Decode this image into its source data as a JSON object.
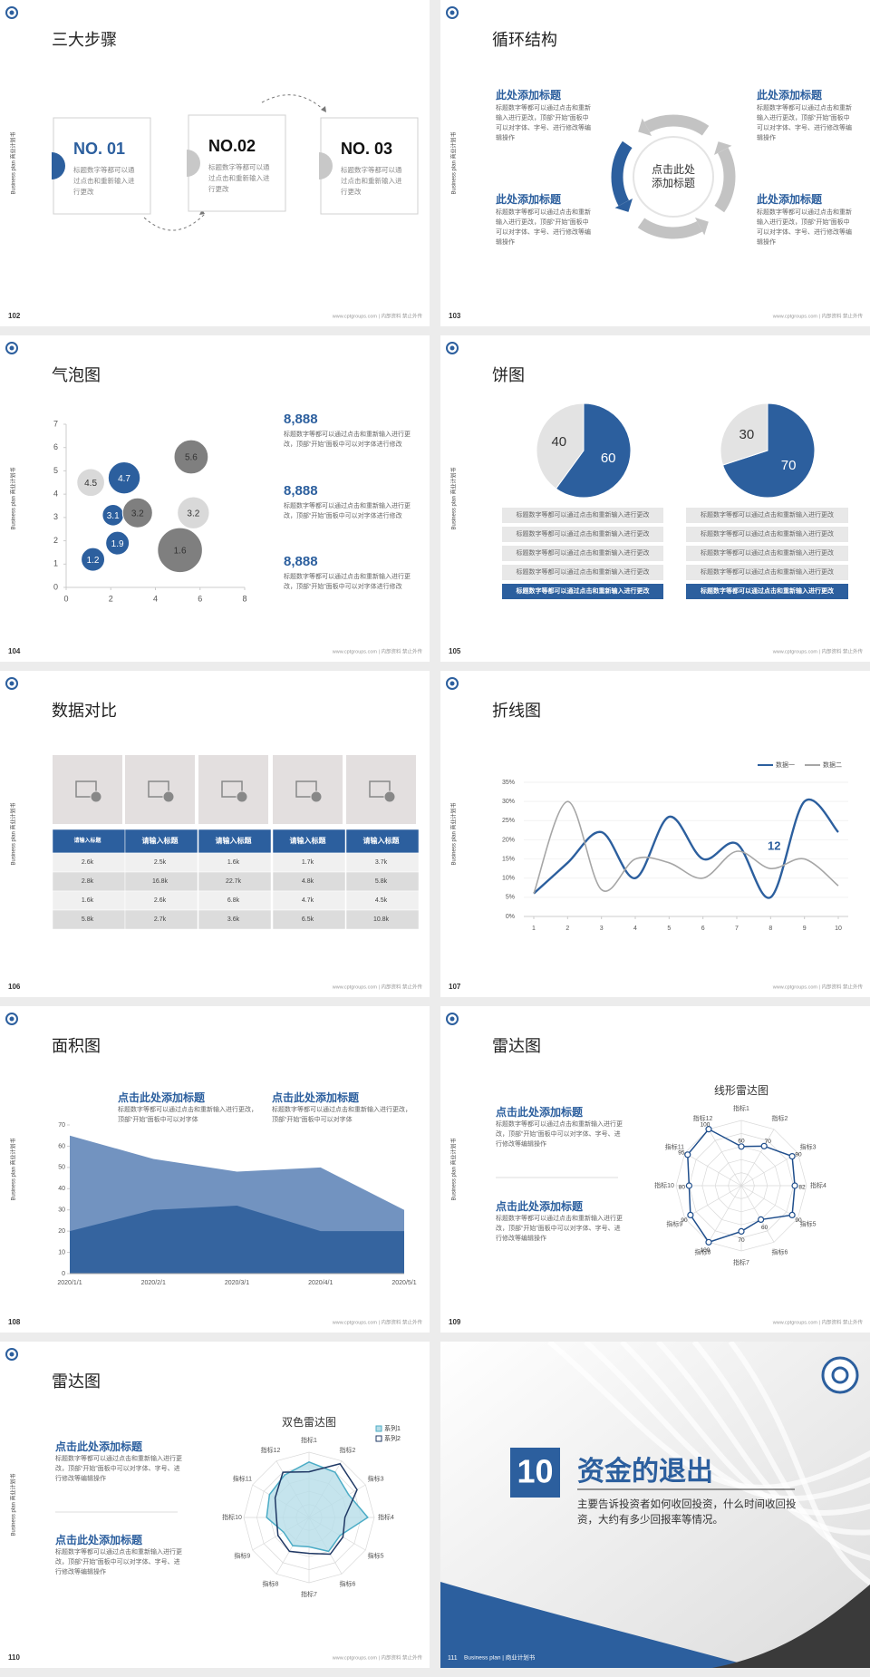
{
  "common": {
    "side_text": "Business plan 商业计划书",
    "footer": "www.cptgroups.com | 内部资料 禁止外传"
  },
  "slides": [
    {
      "page": 102,
      "title": "三大步骤",
      "steps": [
        {
          "label": "NO. 01",
          "text": "标题数字等都可以通过点击和重新输入进行更改"
        },
        {
          "label": "NO.02",
          "text": "标题数字等都可以通过点击和重新输入进行更改"
        },
        {
          "label": "NO. 03",
          "text": "标题数字等都可以通过点击和重新输入进行更改"
        }
      ]
    },
    {
      "page": 103,
      "title": "循环结构",
      "center": [
        "点击此处",
        "添加标题"
      ],
      "blocks": [
        {
          "heading": "此处添加标题",
          "text": "标题数字等都可以通过点击和重新输入进行更改，顶部“开始”面板中可以对字体、字号、进行修改等编辑操作"
        },
        {
          "heading": "此处添加标题",
          "text": "标题数字等都可以通过点击和重新输入进行更改，顶部“开始”面板中可以对字体、字号、进行修改等编辑操作"
        },
        {
          "heading": "此处添加标题",
          "text": "标题数字等都可以通过点击和重新输入进行更改，顶部“开始”面板中可以对字体、字号、进行修改等编辑操作"
        },
        {
          "heading": "此处添加标题",
          "text": "标题数字等都可以通过点击和重新输入进行更改，顶部“开始”面板中可以对字体、字号、进行修改等编辑操作"
        }
      ]
    },
    {
      "page": 104,
      "title": "气泡图",
      "notes": [
        {
          "heading": "8,888",
          "text": "标题数字等都可以通过点击和重新输入进行更改，顶部“开始”面板中可以对字体进行修改"
        },
        {
          "heading": "8,888",
          "text": "标题数字等都可以通过点击和重新输入进行更改，顶部“开始”面板中可以对字体进行修改"
        },
        {
          "heading": "8,888",
          "text": "标题数字等都可以通过点击和重新输入进行更改，顶部“开始”面板中可以对字体进行修改"
        }
      ]
    },
    {
      "page": 105,
      "title": "饼图",
      "lists": [
        [
          "标题数字等都可以通过点击和重新输入进行更改",
          "标题数字等都可以通过点击和重新输入进行更改",
          "标题数字等都可以通过点击和重新输入进行更改",
          "标题数字等都可以通过点击和重新输入进行更改",
          "标题数字等都可以通过点击和重新输入进行更改"
        ],
        [
          "标题数字等都可以通过点击和重新输入进行更改",
          "标题数字等都可以通过点击和重新输入进行更改",
          "标题数字等都可以通过点击和重新输入进行更改",
          "标题数字等都可以通过点击和重新输入进行更改",
          "标题数字等都可以通过点击和重新输入进行更改"
        ]
      ]
    },
    {
      "page": 106,
      "title": "数据对比",
      "table": {
        "header": [
          "请输入标题",
          "请输入标题",
          "请输入标题",
          "请输入标题",
          "请输入标题"
        ],
        "rows": [
          [
            "2.6k",
            "2.5k",
            "1.6k",
            "1.7k",
            "3.7k"
          ],
          [
            "2.8k",
            "16.8k",
            "22.7k",
            "4.8k",
            "5.8k"
          ],
          [
            "1.6k",
            "2.6k",
            "6.8k",
            "4.7k",
            "4.5k"
          ],
          [
            "5.8k",
            "2.7k",
            "3.6k",
            "6.5k",
            "10.8k"
          ]
        ]
      }
    },
    {
      "page": 107,
      "title": "折线图"
    },
    {
      "page": 108,
      "title": "面积图",
      "notes": [
        {
          "heading": "点击此处添加标题",
          "text": "标题数字等都可以通过点击和重新输入进行更改，顶部“开始”面板中可以对字体"
        },
        {
          "heading": "点击此处添加标题",
          "text": "标题数字等都可以通过点击和重新输入进行更改，顶部“开始”面板中可以对字体"
        }
      ]
    },
    {
      "page": 109,
      "title": "雷达图",
      "notes": [
        {
          "heading": "点击此处添加标题",
          "text": "标题数字等都可以通过点击和重新输入进行更改，顶部“开始”面板中可以对字体、字号、进行修改等编辑操作"
        },
        {
          "heading": "点击此处添加标题",
          "text": "标题数字等都可以通过点击和重新输入进行更改，顶部“开始”面板中可以对字体、字号、进行修改等编辑操作"
        }
      ]
    },
    {
      "page": 110,
      "title": "雷达图",
      "notes": [
        {
          "heading": "点击此处添加标题",
          "text": "标题数字等都可以通过点击和重新输入进行更改，顶部“开始”面板中可以对字体、字号、进行修改等编辑操作"
        },
        {
          "heading": "点击此处添加标题",
          "text": "标题数字等都可以通过点击和重新输入进行更改，顶部“开始”面板中可以对字体、字号、进行修改等编辑操作"
        }
      ]
    },
    {
      "page": 111,
      "number": 10,
      "title": "资金的退出",
      "text": "主要告诉投资者如何收回投资，什么时间收回投资，大约有多少回报率等情况。",
      "footer": "Business plan | 商业计划书"
    }
  ],
  "chart_data": [
    {
      "type": "bubble",
      "xlim": [
        0,
        8
      ],
      "xticks": [
        0,
        2,
        4,
        6,
        8
      ],
      "ylim": [
        0,
        7
      ],
      "yticks": [
        0,
        1,
        2,
        3,
        4,
        5,
        6,
        7
      ],
      "series": [
        {
          "color": "#2c5f9e",
          "x": [
            1.2,
            2.3,
            2.1,
            2.6
          ],
          "values": [
            1.2,
            1.9,
            3.1,
            4.7
          ],
          "sizes": [
            11,
            11,
            10,
            15
          ]
        },
        {
          "color": "#7f7f7f",
          "x": [
            3.2,
            5.6,
            5.1
          ],
          "values": [
            3.2,
            5.6,
            1.6
          ],
          "sizes": [
            14,
            16,
            21
          ]
        },
        {
          "color": "#d9d9d9",
          "x": [
            1.1,
            5.7
          ],
          "values": [
            4.5,
            3.2
          ],
          "sizes": [
            13,
            15
          ]
        }
      ]
    },
    {
      "type": "pie",
      "values": [
        60,
        40
      ],
      "colors": [
        "#2c5f9e",
        "#e3e3e3"
      ]
    },
    {
      "type": "pie",
      "values": [
        70,
        30
      ],
      "colors": [
        "#2c5f9e",
        "#e3e3e3"
      ]
    },
    {
      "type": "line",
      "x": [
        1,
        2,
        3,
        4,
        5,
        6,
        7,
        8,
        9,
        10
      ],
      "xlim": [
        1,
        10
      ],
      "xticks": [
        1,
        2,
        3,
        4,
        5,
        6,
        7,
        8,
        9,
        10
      ],
      "ylim": [
        0,
        35
      ],
      "yticks": [
        {
          "value": 0,
          "label": "0%"
        },
        {
          "value": 5,
          "label": "5%"
        },
        {
          "value": 10,
          "label": "10%"
        },
        {
          "value": 15,
          "label": "15%"
        },
        {
          "value": 20,
          "label": "20%"
        },
        {
          "value": 25,
          "label": "25%"
        },
        {
          "value": 30,
          "label": "30%"
        },
        {
          "value": 35,
          "label": "35%"
        }
      ],
      "grid": true,
      "legend": "top-right",
      "annotation": "12",
      "series": [
        {
          "name": "数据一",
          "color": "#2c5f9e",
          "values": [
            6,
            14,
            22,
            10,
            26,
            15,
            19,
            5,
            30,
            22
          ]
        },
        {
          "name": "数据二",
          "color": "#a6a6a6",
          "values": [
            6,
            30,
            7,
            15,
            14,
            10,
            17,
            12.5,
            15,
            8
          ]
        }
      ]
    },
    {
      "type": "area",
      "categories": [
        "2020/1/1",
        "2020/2/1",
        "2020/3/1",
        "2020/4/1",
        "2020/5/1"
      ],
      "ylim": [
        0,
        70
      ],
      "yticks": [
        0,
        10,
        20,
        30,
        40,
        50,
        60,
        70
      ],
      "series": [
        {
          "color": "#7293c0",
          "values": [
            65,
            54,
            48,
            50,
            30
          ]
        },
        {
          "color": "#35649f",
          "values": [
            20,
            30,
            32,
            20,
            20
          ]
        }
      ]
    },
    {
      "type": "radar",
      "title": "线形雷达图",
      "categories": [
        "指标1",
        "指标2",
        "指标3",
        "指标4",
        "指标5",
        "指标6",
        "指标7",
        "指标8",
        "指标9",
        "指标10",
        "指标11",
        "指标12"
      ],
      "rlim": [
        0,
        100
      ],
      "series": [
        {
          "color": "#1f4e8c",
          "values": [
            60,
            70,
            90,
            82,
            90,
            60,
            70,
            100,
            90,
            80,
            95,
            100
          ]
        }
      ]
    },
    {
      "type": "radar",
      "title": "双色雷达图",
      "categories": [
        "指标1",
        "指标2",
        "指标3",
        "指标4",
        "指标5",
        "指标6",
        "指标7",
        "指标8",
        "指标9",
        "指标10",
        "指标11",
        "指标12"
      ],
      "rlim": [
        0,
        100
      ],
      "legend": "top-right",
      "series": [
        {
          "name": "系列1",
          "color": "#4bacc6",
          "fill": "#b7dde8",
          "values": [
            85,
            80,
            70,
            90,
            55,
            60,
            45,
            50,
            45,
            65,
            70,
            75
          ]
        },
        {
          "name": "系列2",
          "color": "#1f3864",
          "values": [
            70,
            95,
            85,
            55,
            60,
            65,
            55,
            60,
            55,
            50,
            60,
            80
          ]
        }
      ]
    }
  ]
}
